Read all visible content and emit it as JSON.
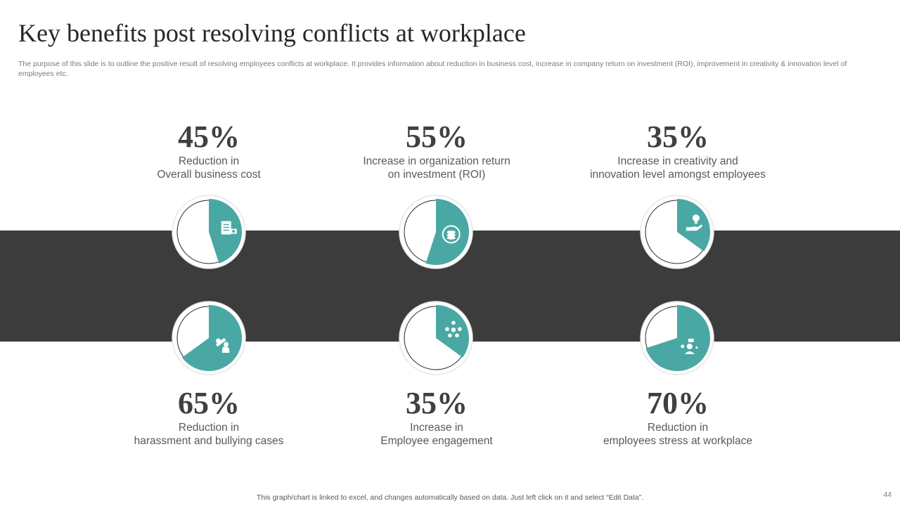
{
  "header": {
    "title": "Key benefits post resolving conflicts at workplace",
    "subtitle": "The purpose of this slide is to outline the positive result of resolving employees conflicts at workplace. It provides information about reduction in business cost, increase in company return on investment (ROI), improvement in creativity & innovation level of employees etc."
  },
  "colors": {
    "accent": "#4aa8a4",
    "band": "#3c3c3c",
    "text_dark": "#404040"
  },
  "chart_data": {
    "type": "pie",
    "items": [
      {
        "value": 45,
        "label": "45%",
        "desc": [
          "Reduction in",
          "Overall business cost"
        ],
        "icon": "cost-document-icon"
      },
      {
        "value": 55,
        "label": "55%",
        "desc": [
          "Increase  in organization return",
          "on investment (ROI)"
        ],
        "icon": "coins-roi-icon"
      },
      {
        "value": 35,
        "label": "35%",
        "desc": [
          "Increase  in creativity and",
          "innovation level amongst employees"
        ],
        "icon": "idea-hand-icon"
      },
      {
        "value": 65,
        "label": "65%",
        "desc": [
          "Reduction in",
          "harassment and bullying cases"
        ],
        "icon": "harassment-icon"
      },
      {
        "value": 35,
        "label": "35%",
        "desc": [
          "Increase  in",
          "Employee engagement"
        ],
        "icon": "team-network-icon"
      },
      {
        "value": 70,
        "label": "70%",
        "desc": [
          "Reduction in",
          "employees stress at workplace"
        ],
        "icon": "stress-person-icon"
      }
    ]
  },
  "footer": {
    "note": "This graph/chart is linked to excel,  and changes automatically based on data. Just left click on it and select “Edit Data”.",
    "page": "44"
  }
}
